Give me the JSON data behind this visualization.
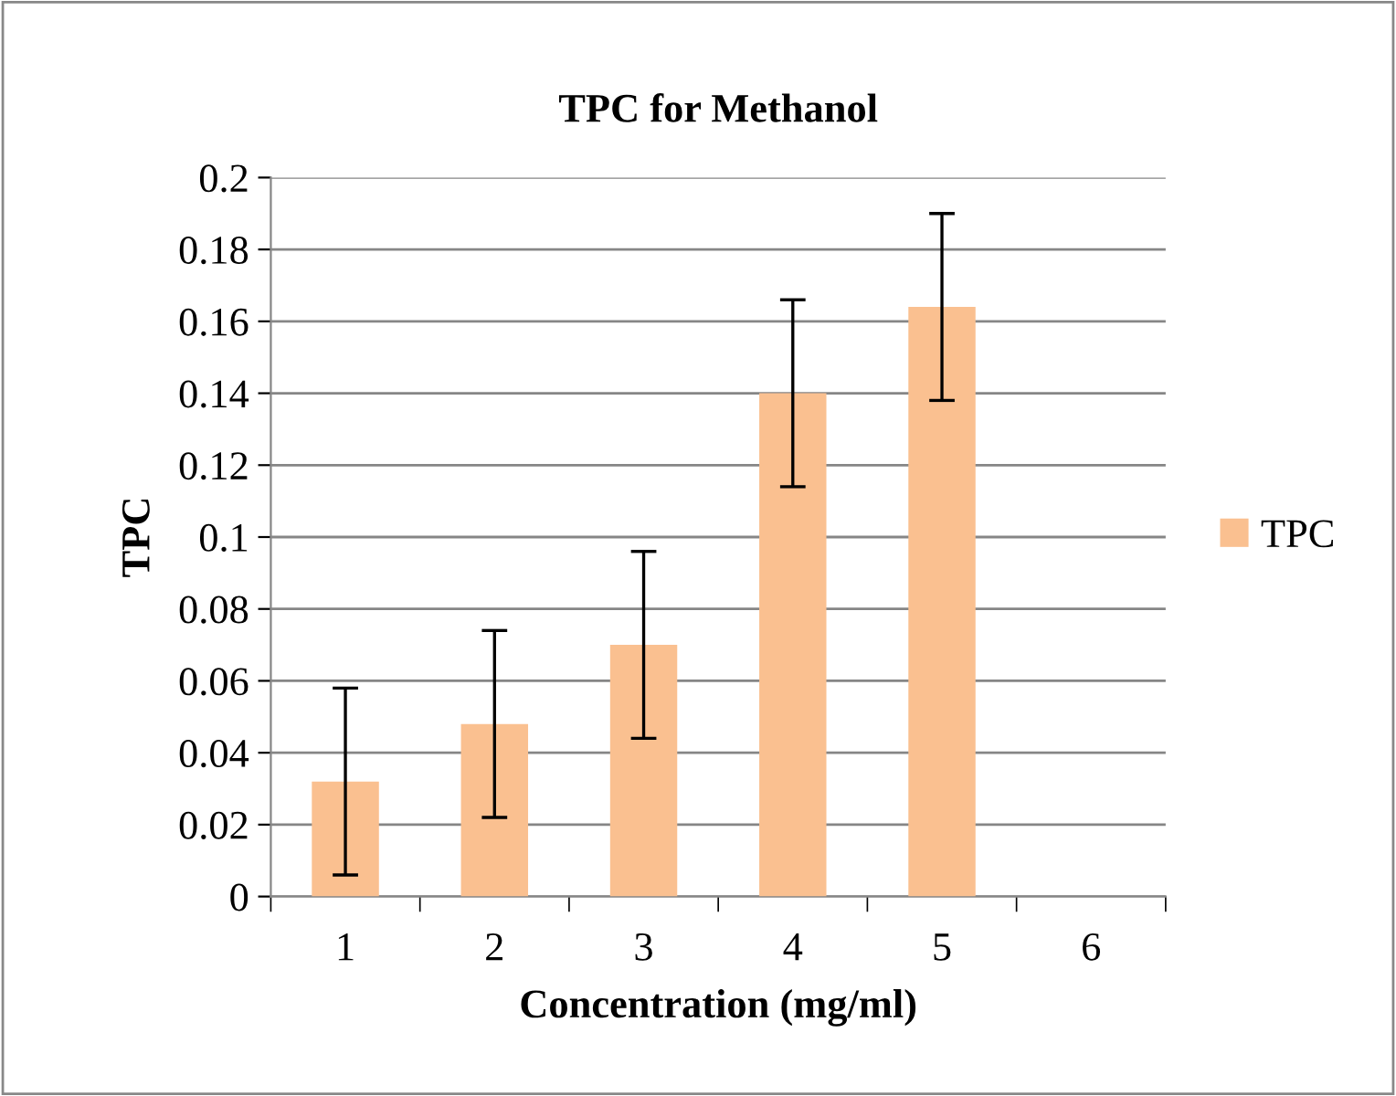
{
  "chart_data": {
    "type": "bar",
    "title": "TPC for Methanol",
    "xlabel": "Concentration (mg/ml)",
    "ylabel": "TPC",
    "categories": [
      "1",
      "2",
      "3",
      "4",
      "5",
      "6"
    ],
    "series": [
      {
        "name": "TPC",
        "color": "#fac090",
        "values": [
          0.032,
          0.048,
          0.07,
          0.14,
          0.164,
          null
        ],
        "errors": [
          0.026,
          0.026,
          0.026,
          0.026,
          0.026,
          null
        ]
      }
    ],
    "ylim": [
      0,
      0.2
    ],
    "yticks": [
      0,
      0.02,
      0.04,
      0.06,
      0.08,
      0.1,
      0.12,
      0.14,
      0.16,
      0.18,
      0.2
    ],
    "grid": "y",
    "legend": "right"
  }
}
